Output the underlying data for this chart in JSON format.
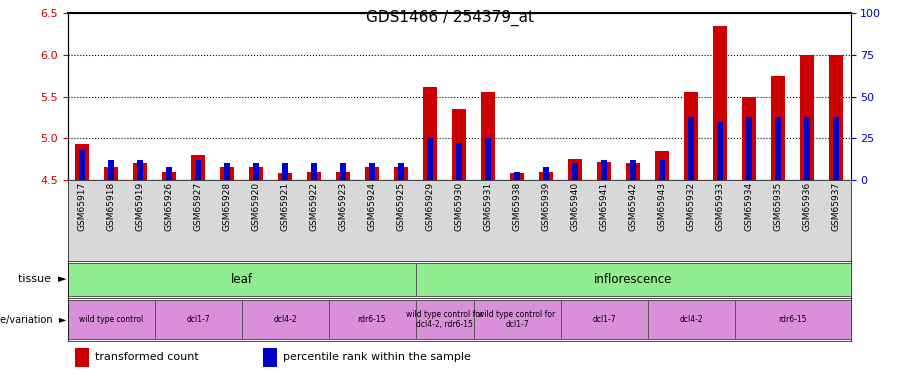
{
  "title": "GDS1466 / 254379_at",
  "samples": [
    "GSM65917",
    "GSM65918",
    "GSM65919",
    "GSM65926",
    "GSM65927",
    "GSM65928",
    "GSM65920",
    "GSM65921",
    "GSM65922",
    "GSM65923",
    "GSM65924",
    "GSM65925",
    "GSM65929",
    "GSM65930",
    "GSM65931",
    "GSM65938",
    "GSM65939",
    "GSM65940",
    "GSM65941",
    "GSM65942",
    "GSM65943",
    "GSM65932",
    "GSM65933",
    "GSM65934",
    "GSM65935",
    "GSM65936",
    "GSM65937"
  ],
  "transformed_count": [
    4.93,
    4.65,
    4.7,
    4.6,
    4.8,
    4.65,
    4.65,
    4.58,
    4.6,
    4.6,
    4.65,
    4.65,
    5.62,
    5.35,
    5.55,
    4.58,
    4.6,
    4.75,
    4.72,
    4.7,
    4.85,
    5.55,
    6.35,
    5.5,
    5.75,
    6.0,
    6.0
  ],
  "percentile_rank": [
    0.18,
    0.12,
    0.12,
    0.08,
    0.12,
    0.1,
    0.1,
    0.1,
    0.1,
    0.1,
    0.1,
    0.1,
    0.25,
    0.22,
    0.25,
    0.05,
    0.08,
    0.1,
    0.12,
    0.12,
    0.12,
    0.38,
    0.35,
    0.38,
    0.38,
    0.38,
    0.38
  ],
  "ymin": 4.5,
  "ymax": 6.5,
  "yticks": [
    4.5,
    5.0,
    5.5,
    6.0,
    6.5
  ],
  "y2ticks": [
    0,
    25,
    50,
    75,
    100
  ],
  "tissue_groups": [
    {
      "label": "leaf",
      "start": 0,
      "end": 11,
      "color": "#90ee90"
    },
    {
      "label": "inflorescence",
      "start": 12,
      "end": 26,
      "color": "#90ee90"
    }
  ],
  "genotype_groups": [
    {
      "label": "wild type control",
      "start": 0,
      "end": 2,
      "color": "#da8fda"
    },
    {
      "label": "dcl1-7",
      "start": 3,
      "end": 5,
      "color": "#da8fda"
    },
    {
      "label": "dcl4-2",
      "start": 6,
      "end": 8,
      "color": "#da8fda"
    },
    {
      "label": "rdr6-15",
      "start": 9,
      "end": 11,
      "color": "#da8fda"
    },
    {
      "label": "wild type control for\ndcl4-2, rdr6-15",
      "start": 12,
      "end": 13,
      "color": "#da8fda"
    },
    {
      "label": "wild type control for\ndcl1-7",
      "start": 14,
      "end": 16,
      "color": "#da8fda"
    },
    {
      "label": "dcl1-7",
      "start": 17,
      "end": 19,
      "color": "#da8fda"
    },
    {
      "label": "dcl4-2",
      "start": 20,
      "end": 22,
      "color": "#da8fda"
    },
    {
      "label": "rdr6-15",
      "start": 23,
      "end": 26,
      "color": "#da8fda"
    }
  ],
  "bar_color": "#cc0000",
  "percentile_color": "#0000cc",
  "bg_color": "#ffffff",
  "grid_color": "#000000",
  "ylabel_color": "#cc0000",
  "y2label_color": "#0000cc"
}
